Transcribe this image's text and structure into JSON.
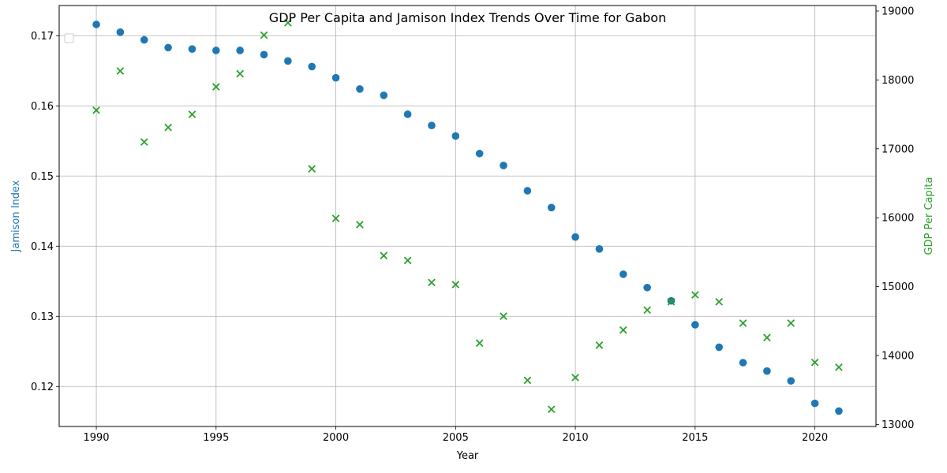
{
  "chart_data": {
    "type": "scatter",
    "title": "GDP Per Capita and Jamison Index Trends Over Time for Gabon",
    "xlabel": "Year",
    "ylabel_left": "Jamison Index",
    "ylabel_right": "GDP Per Capita",
    "xlim": [
      1988.45,
      2022.55
    ],
    "ylim_left": [
      0.1143,
      0.1743
    ],
    "ylim_right": [
      12970,
      19080
    ],
    "x_ticks": [
      1990,
      1995,
      2000,
      2005,
      2010,
      2015,
      2020
    ],
    "y_left_ticks": [
      0.12,
      0.13,
      0.14,
      0.15,
      0.16,
      0.17
    ],
    "y_right_ticks": [
      13000,
      14000,
      15000,
      16000,
      17000,
      18000,
      19000
    ],
    "grid": true,
    "legend": "top-left (empty)",
    "x": [
      1990,
      1991,
      1992,
      1993,
      1994,
      1995,
      1996,
      1997,
      1998,
      1999,
      2000,
      2001,
      2002,
      2003,
      2004,
      2005,
      2006,
      2007,
      2008,
      2009,
      2010,
      2011,
      2012,
      2013,
      2014,
      2015,
      2016,
      2017,
      2018,
      2019,
      2020,
      2021
    ],
    "series": [
      {
        "name": "Jamison Index",
        "axis": "left",
        "marker": "circle",
        "color": "#1f77b4",
        "values": [
          0.1716,
          0.1705,
          0.1694,
          0.1683,
          0.1681,
          0.1679,
          0.1679,
          0.1673,
          0.1664,
          0.1656,
          0.164,
          0.1624,
          0.1615,
          0.1588,
          0.1572,
          0.1557,
          0.1532,
          0.1515,
          0.1479,
          0.1455,
          0.1413,
          0.1396,
          0.136,
          0.1341,
          0.1322,
          0.1288,
          0.1256,
          0.1234,
          0.1222,
          0.1208,
          0.1176,
          0.1165
        ]
      },
      {
        "name": "GDP Per Capita",
        "axis": "right",
        "marker": "x",
        "color": "#2ca02c",
        "values": [
          17560,
          18130,
          17100,
          17310,
          17500,
          17900,
          18090,
          18650,
          18830,
          16710,
          15990,
          15900,
          15450,
          15380,
          15060,
          15030,
          14180,
          14570,
          13640,
          13220,
          13680,
          14150,
          14370,
          14660,
          14780,
          14880,
          14780,
          14470,
          14260,
          14470,
          13900,
          13830
        ]
      }
    ]
  }
}
